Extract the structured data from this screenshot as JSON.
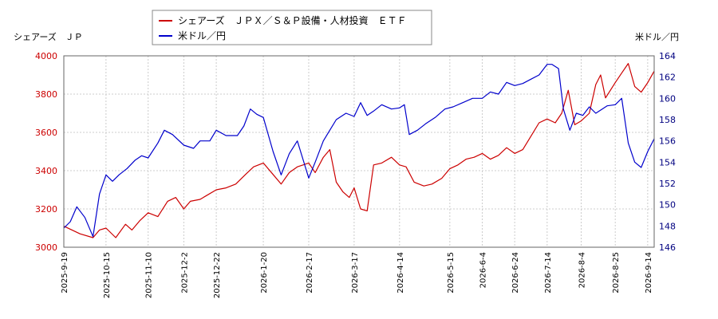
{
  "chart_data": {
    "type": "line",
    "left_axis_title": "シェアーズ　ＪＰ",
    "right_axis_title": "米ドル／円",
    "legend_placement": "top-center",
    "grid": true,
    "x_ticks": [
      "2025-9-19",
      "2025-10-15",
      "2025-11-10",
      "2025-12-2",
      "2025-12-22",
      "2026-1-20",
      "2026-2-17",
      "2026-3-17",
      "2026-4-14",
      "2026-5-15",
      "2026-6-4",
      "2026-6-24",
      "2026-7-14",
      "2026-8-4",
      "2026-8-25",
      "2026-9-14"
    ],
    "y_left": {
      "min": 3000,
      "max": 4000,
      "ticks": [
        3000,
        3200,
        3400,
        3600,
        3800,
        4000
      ]
    },
    "y_right": {
      "min": 146,
      "max": 164,
      "ticks": [
        146,
        148,
        150,
        152,
        154,
        156,
        158,
        160,
        162,
        164
      ]
    },
    "colors": {
      "axis_left": "#cc0000",
      "axis_right": "#000080",
      "grid": "#cccccc"
    },
    "series": [
      {
        "name": "シェアーズ　ＪＰＸ／Ｓ＆Ｐ設備・人材投資　ＥＴＦ",
        "axis": "left",
        "color": "#cc0000",
        "points": [
          [
            "2025-9-19",
            3110
          ],
          [
            "2025-9-29",
            3070
          ],
          [
            "2025-10-7",
            3050
          ],
          [
            "2025-10-11",
            3090
          ],
          [
            "2025-10-15",
            3100
          ],
          [
            "2025-10-21",
            3050
          ],
          [
            "2025-10-27",
            3120
          ],
          [
            "2025-10-31",
            3090
          ],
          [
            "2025-11-5",
            3140
          ],
          [
            "2025-11-10",
            3180
          ],
          [
            "2025-11-16",
            3160
          ],
          [
            "2025-11-22",
            3240
          ],
          [
            "2025-11-27",
            3260
          ],
          [
            "2025-12-2",
            3200
          ],
          [
            "2025-12-6",
            3240
          ],
          [
            "2025-12-12",
            3250
          ],
          [
            "2025-12-16",
            3270
          ],
          [
            "2025-12-22",
            3300
          ],
          [
            "2025-12-28",
            3310
          ],
          [
            "2026-1-3",
            3330
          ],
          [
            "2026-1-9",
            3380
          ],
          [
            "2026-1-14",
            3420
          ],
          [
            "2026-1-20",
            3440
          ],
          [
            "2026-1-26",
            3380
          ],
          [
            "2026-1-31",
            3330
          ],
          [
            "2026-2-5",
            3390
          ],
          [
            "2026-2-10",
            3420
          ],
          [
            "2026-2-17",
            3440
          ],
          [
            "2026-2-21",
            3390
          ],
          [
            "2026-2-26",
            3470
          ],
          [
            "2026-3-2",
            3510
          ],
          [
            "2026-3-6",
            3340
          ],
          [
            "2026-3-10",
            3290
          ],
          [
            "2026-3-14",
            3260
          ],
          [
            "2026-3-17",
            3310
          ],
          [
            "2026-3-21",
            3200
          ],
          [
            "2026-3-25",
            3190
          ],
          [
            "2026-3-29",
            3430
          ],
          [
            "2026-4-3",
            3440
          ],
          [
            "2026-4-9",
            3470
          ],
          [
            "2026-4-14",
            3430
          ],
          [
            "2026-4-18",
            3420
          ],
          [
            "2026-4-23",
            3340
          ],
          [
            "2026-4-29",
            3320
          ],
          [
            "2026-5-4",
            3330
          ],
          [
            "2026-5-10",
            3360
          ],
          [
            "2026-5-15",
            3410
          ],
          [
            "2026-5-20",
            3430
          ],
          [
            "2026-5-25",
            3460
          ],
          [
            "2026-5-30",
            3470
          ],
          [
            "2026-6-4",
            3490
          ],
          [
            "2026-6-9",
            3460
          ],
          [
            "2026-6-14",
            3480
          ],
          [
            "2026-6-19",
            3520
          ],
          [
            "2026-6-24",
            3490
          ],
          [
            "2026-6-29",
            3510
          ],
          [
            "2026-7-4",
            3580
          ],
          [
            "2026-7-9",
            3650
          ],
          [
            "2026-7-14",
            3670
          ],
          [
            "2026-7-19",
            3650
          ],
          [
            "2026-7-23",
            3700
          ],
          [
            "2026-7-27",
            3820
          ],
          [
            "2026-7-31",
            3640
          ],
          [
            "2026-8-4",
            3660
          ],
          [
            "2026-8-9",
            3700
          ],
          [
            "2026-8-13",
            3850
          ],
          [
            "2026-8-16",
            3900
          ],
          [
            "2026-8-19",
            3780
          ],
          [
            "2026-8-25",
            3860
          ],
          [
            "2026-8-29",
            3910
          ],
          [
            "2026-9-2",
            3960
          ],
          [
            "2026-9-6",
            3840
          ],
          [
            "2026-9-10",
            3810
          ],
          [
            "2026-9-14",
            3860
          ],
          [
            "2026-9-18",
            3920
          ]
        ]
      },
      {
        "name": "米ドル／円",
        "axis": "right",
        "color": "#0000cc",
        "points": [
          [
            "2025-9-19",
            147.8
          ],
          [
            "2025-9-23",
            148.4
          ],
          [
            "2025-9-27",
            149.8
          ],
          [
            "2025-10-2",
            148.8
          ],
          [
            "2025-10-7",
            147.0
          ],
          [
            "2025-10-11",
            151.0
          ],
          [
            "2025-10-15",
            152.8
          ],
          [
            "2025-10-19",
            152.2
          ],
          [
            "2025-10-23",
            152.8
          ],
          [
            "2025-10-28",
            153.4
          ],
          [
            "2025-11-2",
            154.2
          ],
          [
            "2025-11-6",
            154.6
          ],
          [
            "2025-11-10",
            154.4
          ],
          [
            "2025-11-16",
            155.8
          ],
          [
            "2025-11-20",
            157.0
          ],
          [
            "2025-11-25",
            156.6
          ],
          [
            "2025-12-2",
            155.6
          ],
          [
            "2025-12-8",
            155.3
          ],
          [
            "2025-12-12",
            156.0
          ],
          [
            "2025-12-18",
            156.0
          ],
          [
            "2025-12-22",
            157.0
          ],
          [
            "2025-12-28",
            156.5
          ],
          [
            "2026-1-4",
            156.5
          ],
          [
            "2026-1-8",
            157.4
          ],
          [
            "2026-1-12",
            159.0
          ],
          [
            "2026-1-16",
            158.5
          ],
          [
            "2026-1-20",
            158.2
          ],
          [
            "2026-1-26",
            155.0
          ],
          [
            "2026-1-31",
            152.8
          ],
          [
            "2026-2-5",
            154.8
          ],
          [
            "2026-2-10",
            156.0
          ],
          [
            "2026-2-17",
            152.5
          ],
          [
            "2026-2-21",
            154.0
          ],
          [
            "2026-2-26",
            156.0
          ],
          [
            "2026-3-2",
            157.0
          ],
          [
            "2026-3-6",
            158.0
          ],
          [
            "2026-3-12",
            158.6
          ],
          [
            "2026-3-17",
            158.3
          ],
          [
            "2026-3-21",
            159.6
          ],
          [
            "2026-3-25",
            158.4
          ],
          [
            "2026-3-29",
            158.8
          ],
          [
            "2026-4-3",
            159.4
          ],
          [
            "2026-4-9",
            159.0
          ],
          [
            "2026-4-14",
            159.1
          ],
          [
            "2026-4-17",
            159.4
          ],
          [
            "2026-4-20",
            156.6
          ],
          [
            "2026-4-25",
            157.0
          ],
          [
            "2026-4-30",
            157.6
          ],
          [
            "2026-5-6",
            158.2
          ],
          [
            "2026-5-12",
            159.0
          ],
          [
            "2026-5-17",
            159.2
          ],
          [
            "2026-5-23",
            159.6
          ],
          [
            "2026-5-29",
            160.0
          ],
          [
            "2026-6-4",
            160.0
          ],
          [
            "2026-6-9",
            160.6
          ],
          [
            "2026-6-14",
            160.4
          ],
          [
            "2026-6-19",
            161.5
          ],
          [
            "2026-6-24",
            161.2
          ],
          [
            "2026-6-29",
            161.4
          ],
          [
            "2026-7-4",
            161.8
          ],
          [
            "2026-7-9",
            162.2
          ],
          [
            "2026-7-14",
            163.2
          ],
          [
            "2026-7-17",
            163.2
          ],
          [
            "2026-7-21",
            162.8
          ],
          [
            "2026-7-24",
            159.0
          ],
          [
            "2026-7-28",
            157.0
          ],
          [
            "2026-8-1",
            158.6
          ],
          [
            "2026-8-5",
            158.4
          ],
          [
            "2026-8-9",
            159.2
          ],
          [
            "2026-8-13",
            158.6
          ],
          [
            "2026-8-17",
            159.0
          ],
          [
            "2026-8-20",
            159.3
          ],
          [
            "2026-8-25",
            159.4
          ],
          [
            "2026-8-29",
            160.0
          ],
          [
            "2026-9-2",
            155.8
          ],
          [
            "2026-9-6",
            154.0
          ],
          [
            "2026-9-10",
            153.5
          ],
          [
            "2026-9-14",
            155.0
          ],
          [
            "2026-9-18",
            156.2
          ]
        ]
      }
    ]
  }
}
